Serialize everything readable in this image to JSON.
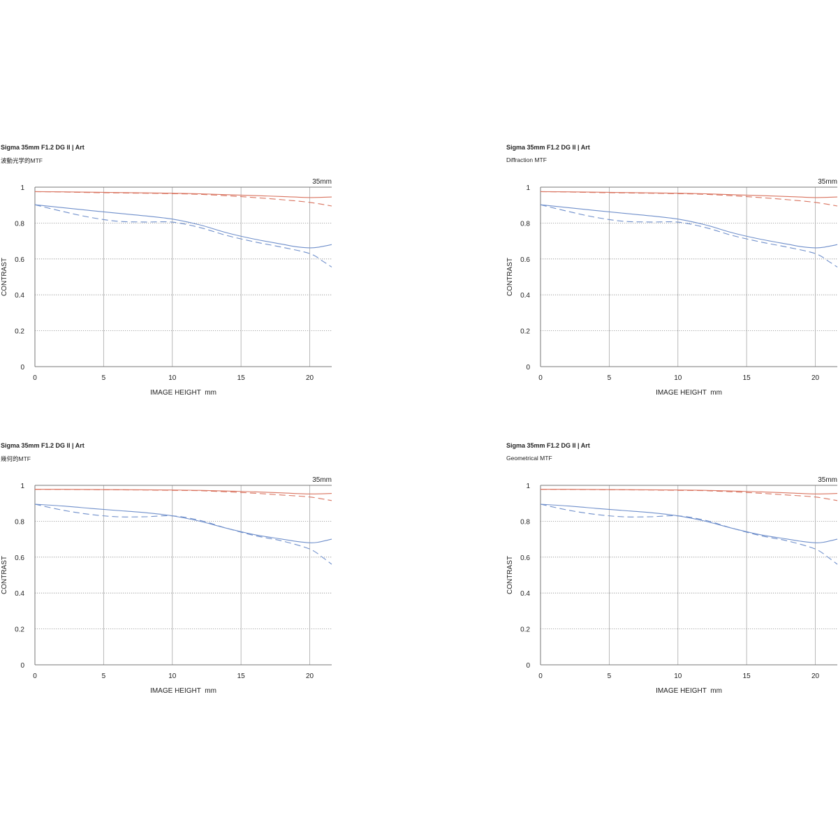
{
  "chart_data": [
    {
      "type": "line",
      "title": "Sigma 35mm F1.2 DG II | Art",
      "subtitle": "波動光学的MTF",
      "focal_label": "35mm",
      "xlabel": "IMAGE HEIGHT  mm",
      "ylabel": "CONTRAST",
      "xlim": [
        0,
        21.6
      ],
      "ylim": [
        0,
        1
      ],
      "xticks": [
        "0",
        "5",
        "10",
        "15",
        "20"
      ],
      "yticks": [
        "0",
        "0.2",
        "0.4",
        "0.6",
        "0.8",
        "1"
      ],
      "grid": true,
      "series": [
        {
          "color": "#d9735f",
          "dash": false,
          "x": [
            0,
            2,
            4,
            6,
            8,
            10,
            12,
            14,
            16,
            18,
            20,
            21.6
          ],
          "y": [
            0.975,
            0.974,
            0.972,
            0.97,
            0.968,
            0.966,
            0.963,
            0.958,
            0.953,
            0.948,
            0.942,
            0.945
          ]
        },
        {
          "color": "#d9735f",
          "dash": true,
          "x": [
            0,
            2,
            4,
            6,
            8,
            10,
            12,
            14,
            16,
            18,
            20,
            21.6
          ],
          "y": [
            0.975,
            0.973,
            0.97,
            0.968,
            0.966,
            0.964,
            0.96,
            0.952,
            0.942,
            0.93,
            0.915,
            0.895
          ]
        },
        {
          "color": "#6f8fcb",
          "dash": false,
          "x": [
            0,
            2,
            4,
            6,
            8,
            10,
            12,
            14,
            16,
            18,
            19,
            20,
            20.6,
            21.6
          ],
          "y": [
            0.902,
            0.886,
            0.87,
            0.855,
            0.84,
            0.822,
            0.79,
            0.745,
            0.71,
            0.682,
            0.668,
            0.662,
            0.665,
            0.68
          ]
        },
        {
          "color": "#6f8fcb",
          "dash": true,
          "x": [
            0,
            2,
            4,
            6,
            8,
            10,
            12,
            14,
            16,
            18,
            20,
            21,
            21.6
          ],
          "y": [
            0.902,
            0.865,
            0.832,
            0.81,
            0.806,
            0.805,
            0.775,
            0.73,
            0.695,
            0.665,
            0.63,
            0.585,
            0.555
          ]
        }
      ]
    },
    {
      "type": "line",
      "title": "Sigma 35mm F1.2 DG II | Art",
      "subtitle": "Diffraction MTF",
      "focal_label": "35mm",
      "xlabel": "IMAGE HEIGHT  mm",
      "ylabel": "CONTRAST",
      "xlim": [
        0,
        21.6
      ],
      "ylim": [
        0,
        1
      ],
      "xticks": [
        "0",
        "5",
        "10",
        "15",
        "20"
      ],
      "yticks": [
        "0",
        "0.2",
        "0.4",
        "0.6",
        "0.8",
        "1"
      ],
      "grid": true,
      "series": [
        {
          "color": "#d9735f",
          "dash": false,
          "x": [
            0,
            2,
            4,
            6,
            8,
            10,
            12,
            14,
            16,
            18,
            20,
            21.6
          ],
          "y": [
            0.975,
            0.974,
            0.972,
            0.97,
            0.968,
            0.966,
            0.963,
            0.958,
            0.953,
            0.948,
            0.942,
            0.945
          ]
        },
        {
          "color": "#d9735f",
          "dash": true,
          "x": [
            0,
            2,
            4,
            6,
            8,
            10,
            12,
            14,
            16,
            18,
            20,
            21.6
          ],
          "y": [
            0.975,
            0.973,
            0.97,
            0.968,
            0.966,
            0.964,
            0.96,
            0.952,
            0.942,
            0.93,
            0.915,
            0.895
          ]
        },
        {
          "color": "#6f8fcb",
          "dash": false,
          "x": [
            0,
            2,
            4,
            6,
            8,
            10,
            12,
            14,
            16,
            18,
            19,
            20,
            20.6,
            21.6
          ],
          "y": [
            0.902,
            0.886,
            0.87,
            0.855,
            0.84,
            0.822,
            0.79,
            0.745,
            0.71,
            0.682,
            0.668,
            0.662,
            0.665,
            0.68
          ]
        },
        {
          "color": "#6f8fcb",
          "dash": true,
          "x": [
            0,
            2,
            4,
            6,
            8,
            10,
            12,
            14,
            16,
            18,
            20,
            21,
            21.6
          ],
          "y": [
            0.902,
            0.865,
            0.832,
            0.81,
            0.806,
            0.805,
            0.775,
            0.73,
            0.695,
            0.665,
            0.63,
            0.585,
            0.555
          ]
        }
      ]
    },
    {
      "type": "line",
      "title": "Sigma 35mm F1.2 DG II | Art",
      "subtitle": "幾何的MTF",
      "focal_label": "35mm",
      "xlabel": "IMAGE HEIGHT  mm",
      "ylabel": "CONTRAST",
      "xlim": [
        0,
        21.6
      ],
      "ylim": [
        0,
        1
      ],
      "xticks": [
        "0",
        "5",
        "10",
        "15",
        "20"
      ],
      "yticks": [
        "0",
        "0.2",
        "0.4",
        "0.6",
        "0.8",
        "1"
      ],
      "grid": true,
      "series": [
        {
          "color": "#d9735f",
          "dash": false,
          "x": [
            0,
            2,
            4,
            6,
            8,
            10,
            12,
            14,
            16,
            18,
            20,
            21.6
          ],
          "y": [
            0.978,
            0.978,
            0.977,
            0.976,
            0.975,
            0.974,
            0.972,
            0.968,
            0.964,
            0.958,
            0.952,
            0.955
          ]
        },
        {
          "color": "#d9735f",
          "dash": true,
          "x": [
            0,
            2,
            4,
            6,
            8,
            10,
            12,
            14,
            16,
            18,
            20,
            21.6
          ],
          "y": [
            0.978,
            0.977,
            0.976,
            0.975,
            0.974,
            0.972,
            0.97,
            0.964,
            0.956,
            0.946,
            0.935,
            0.915
          ]
        },
        {
          "color": "#6f8fcb",
          "dash": false,
          "x": [
            0,
            2,
            4,
            6,
            8,
            10,
            12,
            14,
            16,
            18,
            19,
            20,
            20.6,
            21.6
          ],
          "y": [
            0.895,
            0.885,
            0.872,
            0.86,
            0.848,
            0.83,
            0.8,
            0.76,
            0.725,
            0.7,
            0.688,
            0.68,
            0.683,
            0.7
          ]
        },
        {
          "color": "#6f8fcb",
          "dash": true,
          "x": [
            0,
            2,
            4,
            6,
            8,
            10,
            12,
            14,
            16,
            18,
            20,
            21,
            21.6
          ],
          "y": [
            0.895,
            0.862,
            0.838,
            0.825,
            0.825,
            0.83,
            0.805,
            0.76,
            0.72,
            0.69,
            0.645,
            0.595,
            0.56
          ]
        }
      ]
    },
    {
      "type": "line",
      "title": "Sigma 35mm F1.2 DG II | Art",
      "subtitle": "Geometrical MTF",
      "focal_label": "35mm",
      "xlabel": "IMAGE HEIGHT  mm",
      "ylabel": "CONTRAST",
      "xlim": [
        0,
        21.6
      ],
      "ylim": [
        0,
        1
      ],
      "xticks": [
        "0",
        "5",
        "10",
        "15",
        "20"
      ],
      "yticks": [
        "0",
        "0.2",
        "0.4",
        "0.6",
        "0.8",
        "1"
      ],
      "grid": true,
      "series": [
        {
          "color": "#d9735f",
          "dash": false,
          "x": [
            0,
            2,
            4,
            6,
            8,
            10,
            12,
            14,
            16,
            18,
            20,
            21.6
          ],
          "y": [
            0.978,
            0.978,
            0.977,
            0.976,
            0.975,
            0.974,
            0.972,
            0.968,
            0.964,
            0.958,
            0.952,
            0.955
          ]
        },
        {
          "color": "#d9735f",
          "dash": true,
          "x": [
            0,
            2,
            4,
            6,
            8,
            10,
            12,
            14,
            16,
            18,
            20,
            21.6
          ],
          "y": [
            0.978,
            0.977,
            0.976,
            0.975,
            0.974,
            0.972,
            0.97,
            0.964,
            0.956,
            0.946,
            0.935,
            0.915
          ]
        },
        {
          "color": "#6f8fcb",
          "dash": false,
          "x": [
            0,
            2,
            4,
            6,
            8,
            10,
            12,
            14,
            16,
            18,
            19,
            20,
            20.6,
            21.6
          ],
          "y": [
            0.895,
            0.885,
            0.872,
            0.86,
            0.848,
            0.83,
            0.8,
            0.76,
            0.725,
            0.7,
            0.688,
            0.68,
            0.683,
            0.7
          ]
        },
        {
          "color": "#6f8fcb",
          "dash": true,
          "x": [
            0,
            2,
            4,
            6,
            8,
            10,
            12,
            14,
            16,
            18,
            20,
            21,
            21.6
          ],
          "y": [
            0.895,
            0.862,
            0.838,
            0.825,
            0.825,
            0.83,
            0.805,
            0.76,
            0.72,
            0.69,
            0.645,
            0.595,
            0.56
          ]
        }
      ]
    }
  ]
}
